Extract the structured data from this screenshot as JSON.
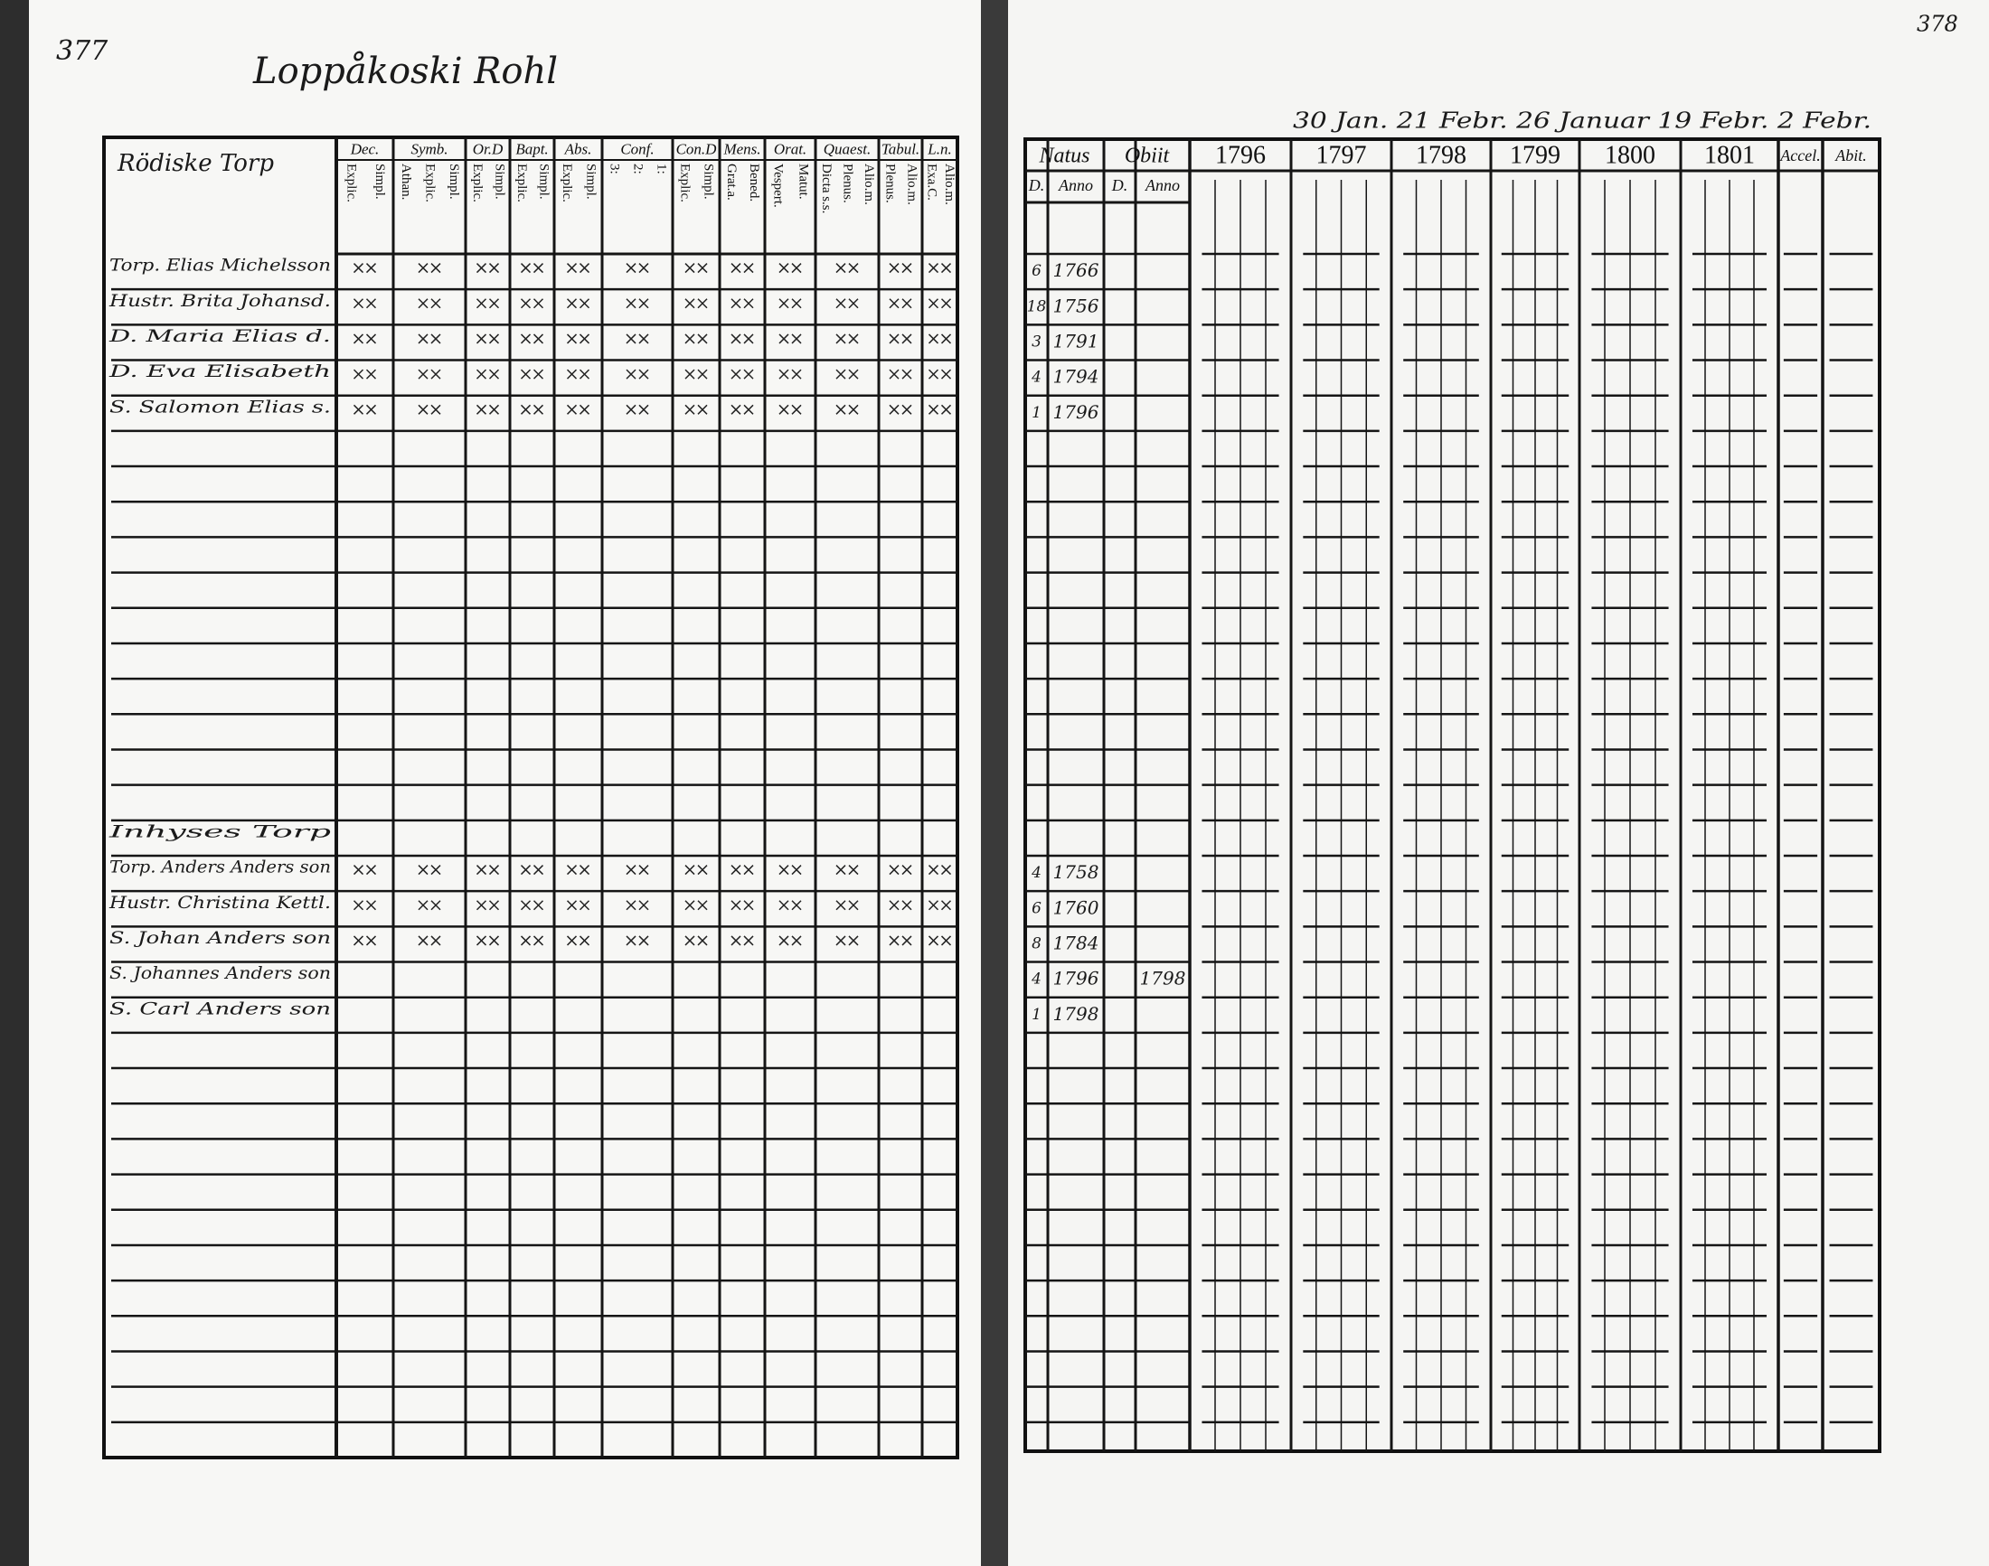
{
  "left_page": {
    "page_number": "377",
    "title": "Loppåkoski Rohl",
    "table": {
      "name_header": "Rödiske Torp",
      "columns": [
        {
          "header": "Dec.",
          "sub": [
            "Explic.",
            "Simpl."
          ]
        },
        {
          "header": "Symb.",
          "sub": [
            "Athan.",
            "Explic.",
            "Simpl."
          ]
        },
        {
          "header": "Or.D",
          "sub": [
            "Explic.",
            "Simpl."
          ]
        },
        {
          "header": "Bapt.",
          "sub": [
            "Explic.",
            "Simpl."
          ]
        },
        {
          "header": "Abs.",
          "sub": [
            "Explic.",
            "Simpl."
          ]
        },
        {
          "header": "Conf.",
          "sub": [
            "3:",
            "2:",
            "1:"
          ]
        },
        {
          "header": "Con.D",
          "sub": [
            "Explic.",
            "Simpl."
          ]
        },
        {
          "header": "Mens.",
          "sub": [
            "Grat.a.",
            "Bened."
          ]
        },
        {
          "header": "Orat.",
          "sub": [
            "Vespert.",
            "Matut."
          ]
        },
        {
          "header": "Quaest.",
          "sub": [
            "Dicta s.s.",
            "Plenus.",
            "Alio.m."
          ]
        },
        {
          "header": "Tabul.",
          "sub": [
            "Plenus.",
            "Alio.m."
          ]
        },
        {
          "header": "L.n.",
          "sub": [
            "Exa.C.",
            "Alio.m."
          ]
        }
      ],
      "rows": [
        {
          "row": 0,
          "name": "Torp. Elias Michelsson"
        },
        {
          "row": 1,
          "name": "Hustr. Brita Johansd."
        },
        {
          "row": 2,
          "name": "D. Maria Elias d."
        },
        {
          "row": 3,
          "name": "D. Eva Elisabeth"
        },
        {
          "row": 4,
          "name": "S. Salomon Elias s."
        },
        {
          "row": 16,
          "name": "Inhyses Torp"
        },
        {
          "row": 17,
          "name": "Torp. Anders Anders son"
        },
        {
          "row": 18,
          "name": "Hustr. Christina Kettl."
        },
        {
          "row": 19,
          "name": "S. Johan Anders son"
        },
        {
          "row": 20,
          "name": "S. Johannes Anders son"
        },
        {
          "row": 21,
          "name": "S. Carl Anders son"
        }
      ]
    }
  },
  "right_page": {
    "page_number": "378",
    "dates_note": "30 Jan. 21 Febr. 26 Januar 19 Febr. 2 Febr.",
    "table": {
      "natus_header": "Natus",
      "obiit_header": "Obiit",
      "sub_headers": [
        "D.",
        "Anno",
        "D.",
        "Anno"
      ],
      "years": [
        "1796",
        "1797",
        "1798",
        "1799",
        "1800",
        "1801"
      ],
      "accel_header": "Accel.",
      "abit_header": "Abit.",
      "rows": [
        {
          "row": 0,
          "natus_day": "6",
          "natus_anno": "1766"
        },
        {
          "row": 1,
          "natus_day": "18",
          "natus_anno": "1756"
        },
        {
          "row": 2,
          "natus_day": "3",
          "natus_anno": "1791"
        },
        {
          "row": 3,
          "natus_day": "4",
          "natus_anno": "1794"
        },
        {
          "row": 4,
          "natus_day": "1",
          "natus_anno": "1796"
        },
        {
          "row": 17,
          "natus_day": "4",
          "natus_anno": "1758"
        },
        {
          "row": 18,
          "natus_day": "6",
          "natus_anno": "1760"
        },
        {
          "row": 19,
          "natus_day": "8",
          "natus_anno": "1784"
        },
        {
          "row": 20,
          "natus_day": "4",
          "natus_anno": "1796",
          "obiit_anno": "1798"
        },
        {
          "row": 21,
          "natus_day": "1",
          "natus_anno": "1798"
        }
      ]
    }
  }
}
